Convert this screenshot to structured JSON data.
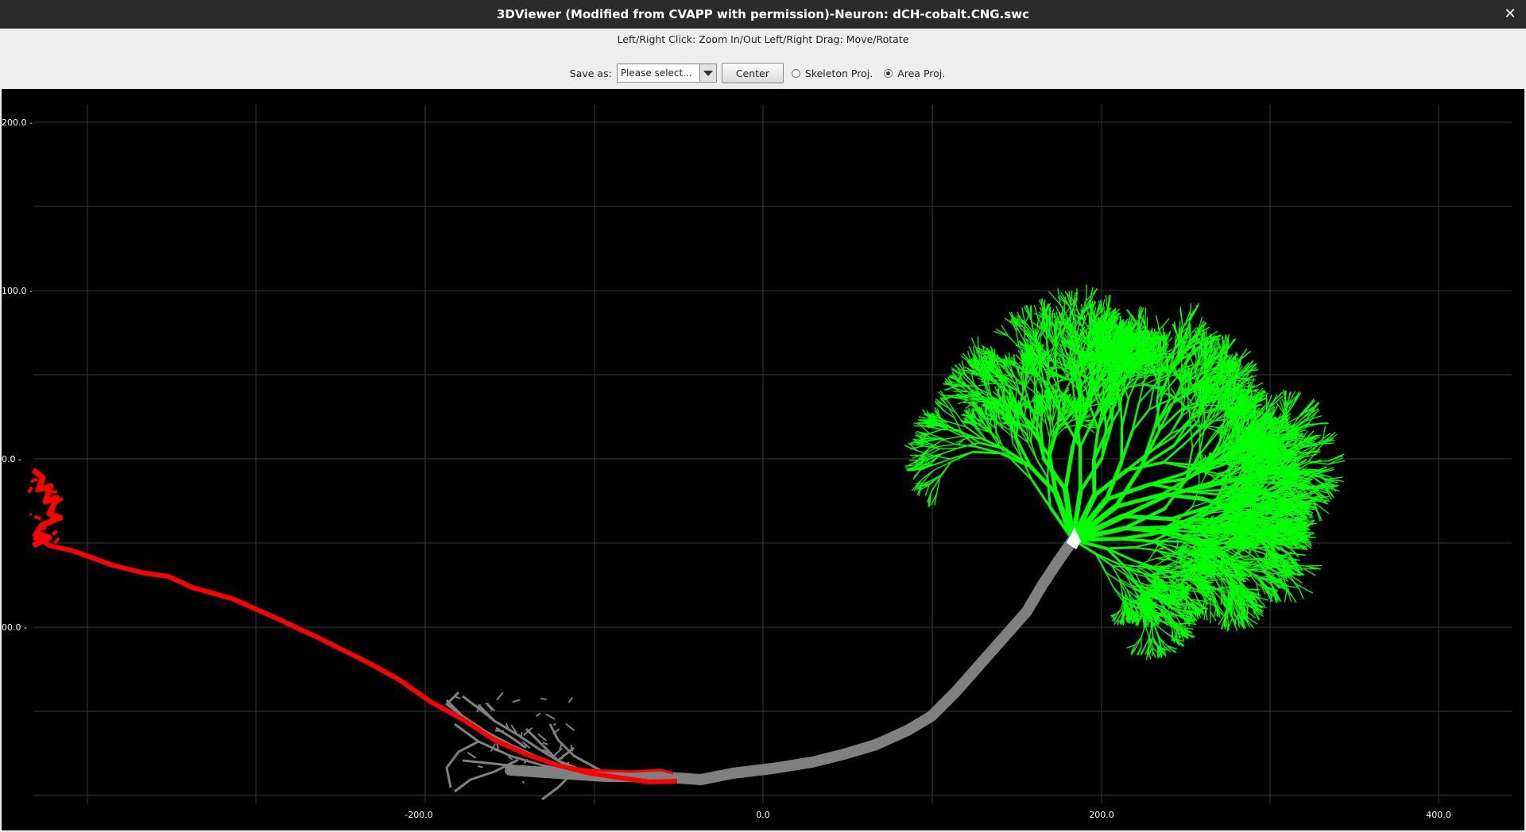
{
  "window": {
    "title": "3DViewer (Modified from CVAPP with permission)-Neuron: dCH-cobalt.CNG.swc",
    "close_icon": "close-icon"
  },
  "hint": "Left/Right Click: Zoom In/Out  Left/Right Drag: Move/Rotate",
  "toolbar": {
    "save_as_label": "Save as:",
    "save_select_value": "Please select...",
    "center_button": "Center",
    "skeleton_proj_label": "Skeleton Proj.",
    "skeleton_proj_checked": false,
    "area_proj_label": "Area Proj.",
    "area_proj_checked": true
  },
  "viewer": {
    "background": "#000000",
    "grid_color": "#3a3a3a",
    "axis_text_color": "#ffffff",
    "y_ticks": [
      "200.0",
      "100.0",
      "0.0",
      "00.0"
    ],
    "x_ticks": [
      "-200.0",
      "0.0",
      "200.0",
      "400.0"
    ],
    "colors": {
      "axon": "#ff0000",
      "soma_dendrite": "#808080",
      "apical_dendrite": "#00ff00",
      "soma": "#ffffff"
    }
  }
}
